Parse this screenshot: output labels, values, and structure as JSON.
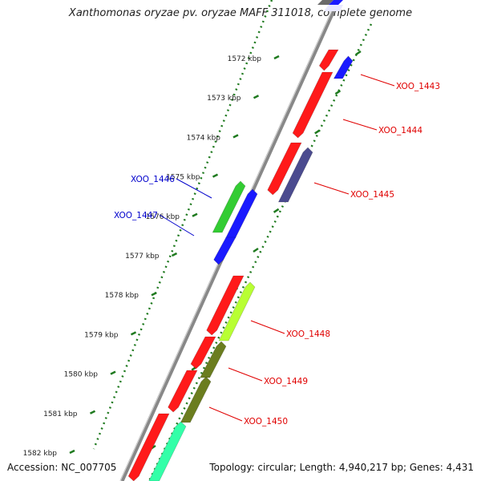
{
  "title": "Xanthomonas oryzae pv. oryzae MAFF 311018, complete genome",
  "accession": "Accession: NC_007705",
  "topology": "Topology: circular; Length: 4,940,217 bp; Genes: 4,431",
  "colors": {
    "backbone": "#8c8c8c",
    "tick": "#1f7a1f",
    "red": "#ff1a1a",
    "blue": "#1a1aff",
    "green": "#33cc33",
    "purple": "#4b4b8f",
    "olive": "#6b7d1f",
    "lime": "#b8ff33",
    "teal": "#33ffa8",
    "label_red": "#e00000",
    "label_blue": "#0000cc"
  },
  "ticks": [
    {
      "kbp": 1572,
      "label": "1572 kbp"
    },
    {
      "kbp": 1573,
      "label": "1573 kbp"
    },
    {
      "kbp": 1574,
      "label": "1574 kbp"
    },
    {
      "kbp": 1575,
      "label": "1575 kbp"
    },
    {
      "kbp": 1576,
      "label": "1576 kbp"
    },
    {
      "kbp": 1577,
      "label": "1577 kbp"
    },
    {
      "kbp": 1578,
      "label": "1578 kbp"
    },
    {
      "kbp": 1579,
      "label": "1579 kbp"
    },
    {
      "kbp": 1580,
      "label": "1580 kbp"
    },
    {
      "kbp": 1581,
      "label": "1581 kbp"
    },
    {
      "kbp": 1582,
      "label": "1582 kbp"
    }
  ],
  "genes": [
    {
      "id": "XOO_1443",
      "side": "right",
      "color": "red"
    },
    {
      "id": "XOO_1444",
      "side": "right",
      "color": "red"
    },
    {
      "id": "XOO_1445",
      "side": "right",
      "color": "red"
    },
    {
      "id": "XOO_1446",
      "side": "left",
      "color": "blue"
    },
    {
      "id": "XOO_1447",
      "side": "left",
      "color": "blue"
    },
    {
      "id": "XOO_1448",
      "side": "right",
      "color": "red"
    },
    {
      "id": "XOO_1449",
      "side": "right",
      "color": "red"
    },
    {
      "id": "XOO_1450",
      "side": "right",
      "color": "red"
    }
  ]
}
